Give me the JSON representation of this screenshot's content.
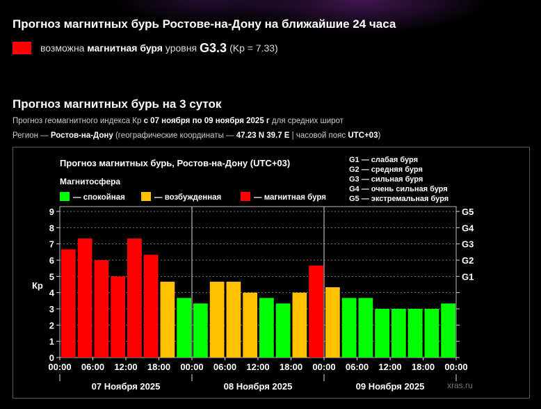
{
  "header": {
    "title": "Прогноз магнитных бурь Ростове-на-Дону на ближайшие 24 часа",
    "status_prefix": "возможна",
    "status_bold": "магнитная буря",
    "status_mid": "уровня",
    "status_level": "G3.3",
    "status_kp": "(Kp = 7.33)",
    "status_color": "#ff0000"
  },
  "section": {
    "title": "Прогноз магнитных бурь на 3 суток",
    "line1_a": "Прогноз геомагнитного индекса Кр",
    "line1_b": "с 07 ноября по 09 ноября 2025 г",
    "line1_c": "для средних широт",
    "line2_a": "Регион —",
    "line2_region": "Ростов-на-Дону",
    "line2_b": "(географические координаты —",
    "line2_coords": "47.23 N 39.7 E",
    "line2_c": "| часовой пояс",
    "line2_tz": "UTC+03",
    "line2_d": ")"
  },
  "watermark": "xras.ru",
  "chart_data": {
    "type": "bar",
    "title": "Прогноз магнитных бурь, Ростов-на-Дону (UTC+03)",
    "legend_title": "Магнитосфера",
    "legend": [
      {
        "label": "— спокойная",
        "color": "#00ff00"
      },
      {
        "label": "— возбужденная",
        "color": "#ffc000"
      },
      {
        "label": "— магнитная буря",
        "color": "#ff0000"
      }
    ],
    "g_legend": [
      "G1 — слабая буря",
      "G2 — средняя буря",
      "G3 — сильная буря",
      "G4 — очень сильная буря",
      "G5 — экстремальная буря"
    ],
    "ylabel": "Кр",
    "ylim": [
      0,
      9.3
    ],
    "yticks": [
      0,
      1,
      2,
      3,
      4,
      5,
      6,
      7,
      8,
      9
    ],
    "g_ticks": [
      {
        "label": "G1",
        "kp": 5
      },
      {
        "label": "G2",
        "kp": 6
      },
      {
        "label": "G3",
        "kp": 7
      },
      {
        "label": "G4",
        "kp": 8
      },
      {
        "label": "G5",
        "kp": 9
      }
    ],
    "x_tick_labels": [
      "00:00",
      "06:00",
      "12:00",
      "18:00",
      "00:00",
      "06:00",
      "12:00",
      "18:00",
      "00:00",
      "06:00",
      "12:00",
      "18:00",
      "00:00"
    ],
    "days": [
      "07 Ноября 2025",
      "08 Ноября 2025",
      "09 Ноября 2025"
    ],
    "values": [
      6.67,
      7.33,
      6.0,
      5.0,
      7.33,
      6.33,
      4.67,
      3.67,
      3.33,
      4.67,
      4.67,
      4.0,
      3.67,
      3.33,
      4.0,
      5.67,
      4.33,
      3.67,
      3.67,
      3.0,
      3.0,
      3.0,
      3.0,
      3.33
    ],
    "bar_colors": [
      "#ff0000",
      "#ff0000",
      "#ff0000",
      "#ff0000",
      "#ff0000",
      "#ff0000",
      "#ffc000",
      "#00ff00",
      "#00ff00",
      "#ffc000",
      "#ffc000",
      "#ffc000",
      "#00ff00",
      "#00ff00",
      "#ffc000",
      "#ff0000",
      "#ffc000",
      "#00ff00",
      "#00ff00",
      "#00ff00",
      "#00ff00",
      "#00ff00",
      "#00ff00",
      "#00ff00"
    ],
    "grid": "dashed horizontal"
  }
}
